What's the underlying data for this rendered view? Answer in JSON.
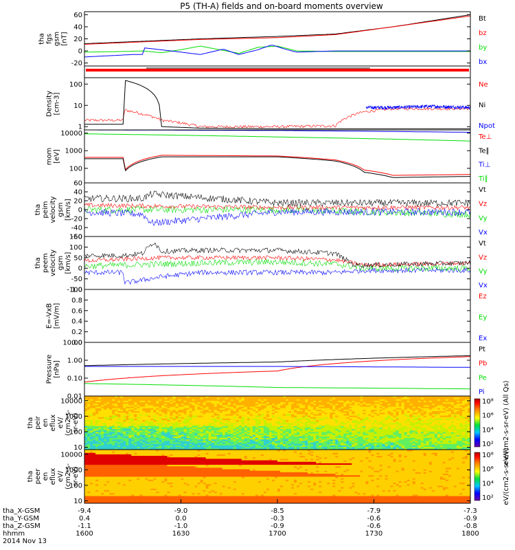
{
  "chart_data": {
    "type": "line",
    "title": "P5 (TH-A) fields and on-board moments overview",
    "colors": {
      "black": "#000000",
      "red": "#ff0000",
      "green": "#00dd00",
      "blue": "#0000ff"
    },
    "time_axis": {
      "range": [
        1600,
        1800
      ],
      "ticks": [
        "1600",
        "1630",
        "1700",
        "1730",
        "1800"
      ],
      "rows": [
        {
          "label": "tha_X-GSM",
          "values": [
            "-9.4",
            "-9.0",
            "-8.5",
            "-7.9",
            "-7.3"
          ]
        },
        {
          "label": "tha_Y-GSM",
          "values": [
            "0.4",
            "0.0",
            "-0.3",
            "-0.6",
            "-0.9"
          ]
        },
        {
          "label": "tha_Z-GSM",
          "values": [
            "-1.1",
            "-1.0",
            "-0.9",
            "-0.6",
            "-0.8"
          ]
        },
        {
          "label": "hhmm",
          "values": []
        }
      ],
      "date": "2014 Nov 13"
    },
    "panels": [
      {
        "id": "fgs",
        "ylabel": [
          "tha",
          "fgs",
          "gsm",
          "[nT]"
        ],
        "scale": "linear",
        "ylim": [
          -25,
          65
        ],
        "yticks": [
          "60",
          "40",
          "20",
          "0",
          "-20"
        ],
        "ytick_values": [
          60,
          40,
          20,
          0,
          -20
        ],
        "legend": [
          {
            "name": "Bt",
            "color": "#000000"
          },
          {
            "name": "bz",
            "color": "#ff0000"
          },
          {
            "name": "by",
            "color": "#00dd00"
          },
          {
            "name": "bx",
            "color": "#0000ff"
          }
        ],
        "series": [
          {
            "name": "Bt",
            "color": "#000000",
            "t": [
              1600,
              1630,
              1660,
              1700,
              1730,
              1760,
              1780,
              1800
            ],
            "v": [
              12,
              16,
              20,
              24,
              28,
              40,
              50,
              60
            ]
          },
          {
            "name": "bz",
            "color": "#ff0000",
            "t": [
              1600,
              1630,
              1660,
              1700,
              1730,
              1760,
              1800
            ],
            "v": [
              11,
              15,
              19,
              22,
              27,
              40,
              58
            ]
          },
          {
            "name": "by",
            "color": "#00dd00",
            "t": [
              1600,
              1620,
              1630,
              1640,
              1650,
              1660,
              1670,
              1680,
              1690,
              1700,
              1710,
              1730,
              1760,
              1800
            ],
            "v": [
              -2,
              -1,
              0,
              -3,
              2,
              8,
              2,
              -4,
              6,
              8,
              0,
              -1,
              -1,
              -1
            ]
          },
          {
            "name": "bx",
            "color": "#0000ff",
            "t": [
              1600,
              1625,
              1630,
              1631,
              1645,
              1660,
              1672,
              1680,
              1690,
              1697,
              1705,
              1710,
              1730,
              1800
            ],
            "v": [
              -10,
              -6,
              -6,
              5,
              0,
              -6,
              3,
              -6,
              2,
              10,
              2,
              -2,
              0,
              0
            ]
          }
        ]
      },
      {
        "id": "flags",
        "scale": "linear",
        "ylim": [
          0,
          1
        ],
        "legend": [],
        "series": []
      },
      {
        "id": "density",
        "ylabel": [
          "Density",
          "[cm-3]"
        ],
        "scale": "log",
        "ylim": [
          0.7,
          200
        ],
        "yticks": [
          "100",
          "10",
          "1"
        ],
        "ytick_values": [
          100,
          10,
          1
        ],
        "legend": [
          {
            "name": "Ne",
            "color": "#ff0000"
          },
          {
            "name": "Ni",
            "color": "#000000"
          },
          {
            "name": "Npot",
            "color": "#0000ff"
          }
        ],
        "series": [
          {
            "name": "Ne",
            "color": "#ff0000",
            "noise": 0.15,
            "t": [
              1600,
              1620,
              1621,
              1630,
              1640,
              1660,
              1700,
              1730,
              1745,
              1760,
              1800
            ],
            "v": [
              2,
              2,
              6,
              4,
              2,
              1,
              1,
              1.1,
              5,
              7,
              7
            ]
          },
          {
            "name": "Ni",
            "color": "#000000",
            "t": [
              1600,
              1620,
              1621,
              1640,
              1660,
              1700,
              1730,
              1760,
              1800
            ],
            "v": [
              1.3,
              1.3,
              150,
              1,
              0.85,
              0.8,
              0.8,
              0.8,
              0.8
            ]
          },
          {
            "name": "Npot",
            "color": "#0000ff",
            "noise": 0.2,
            "t": [
              1746,
              1760,
              1780,
              1800
            ],
            "v": [
              8,
              8,
              9,
              8
            ]
          }
        ]
      },
      {
        "id": "temperature",
        "ylabel": [
          "mom",
          "[eV]"
        ],
        "scale": "log",
        "ylim": [
          15,
          15000
        ],
        "yticks": [
          "10000",
          "1000",
          "100",
          "10"
        ],
        "ytick_values": [
          10000,
          1000,
          100,
          10
        ],
        "legend": [
          {
            "name": "Te⊥",
            "color": "#ff0000"
          },
          {
            "name": "Te∥",
            "color": "#000000"
          },
          {
            "name": "Ti⊥",
            "color": "#0000ff"
          },
          {
            "name": "Ti∥",
            "color": "#00dd00"
          }
        ],
        "series": [
          {
            "name": "Te⊥",
            "color": "#ff0000",
            "t": [
              1600,
              1620,
              1621,
              1640,
              1700,
              1730,
              1745,
              1760,
              1800
            ],
            "v": [
              420,
              420,
              80,
              550,
              500,
              300,
              80,
              40,
              45
            ]
          },
          {
            "name": "Te∥",
            "color": "#000000",
            "t": [
              1600,
              1620,
              1621,
              1640,
              1700,
              1730,
              1745,
              1760,
              1800
            ],
            "v": [
              350,
              350,
              70,
              450,
              450,
              260,
              60,
              30,
              35
            ]
          },
          {
            "name": "Ti⊥",
            "color": "#0000ff",
            "t": [
              1600,
              1700,
              1800
            ],
            "v": [
              15000,
              14000,
              11000
            ]
          },
          {
            "name": "Ti∥",
            "color": "#00dd00",
            "t": [
              1600,
              1700,
              1800
            ],
            "v": [
              9000,
              6000,
              3500
            ]
          }
        ]
      },
      {
        "id": "peim",
        "ylabel": [
          "tha",
          "peim",
          "velocity",
          "gsm",
          "[km/s]"
        ],
        "scale": "linear",
        "ylim": [
          -60,
          60
        ],
        "yticks": [
          "60",
          "40",
          "20",
          "0",
          "-20",
          "-40",
          "-60"
        ],
        "ytick_values": [
          60,
          40,
          20,
          0,
          -20,
          -40,
          -60
        ],
        "legend": [
          {
            "name": "Vt",
            "color": "#000000"
          },
          {
            "name": "Vz",
            "color": "#ff0000"
          },
          {
            "name": "Vy",
            "color": "#00dd00"
          },
          {
            "name": "Vx",
            "color": "#0000ff"
          }
        ],
        "series": [
          {
            "name": "Vy",
            "color": "#00dd00",
            "noise": 8,
            "t": [
              1600,
              1700,
              1800
            ],
            "v": [
              0,
              0,
              -10
            ]
          },
          {
            "name": "Vx",
            "color": "#0000ff",
            "noise": 8,
            "t": [
              1600,
              1630,
              1635,
              1700,
              1800
            ],
            "v": [
              -5,
              -10,
              -30,
              -5,
              -5
            ]
          },
          {
            "name": "Vz",
            "color": "#ff0000",
            "noise": 5,
            "t": [
              1600,
              1700,
              1800
            ],
            "v": [
              10,
              5,
              5
            ]
          },
          {
            "name": "Vt",
            "color": "#000000",
            "noise": 8,
            "t": [
              1600,
              1630,
              1635,
              1700,
              1800
            ],
            "v": [
              25,
              25,
              35,
              15,
              15
            ]
          }
        ]
      },
      {
        "id": "peem",
        "ylabel": [
          "tha",
          "peem",
          "velocity",
          "gsm",
          "[km/s]"
        ],
        "scale": "linear",
        "ylim": [
          -100,
          150
        ],
        "yticks": [
          "150",
          "100",
          "50",
          "0",
          "-50",
          "-100"
        ],
        "ytick_values": [
          150,
          100,
          50,
          0,
          -50,
          -100
        ],
        "legend": [
          {
            "name": "Vt",
            "color": "#000000"
          },
          {
            "name": "Vz",
            "color": "#ff0000"
          },
          {
            "name": "Vy",
            "color": "#00dd00"
          },
          {
            "name": "Vx",
            "color": "#0000ff"
          }
        ],
        "series": [
          {
            "name": "Vx",
            "color": "#0000ff",
            "noise": 12,
            "t": [
              1600,
              1620,
              1621,
              1640,
              1660,
              1700,
              1730,
              1745,
              1800
            ],
            "v": [
              -20,
              -20,
              -70,
              -40,
              -20,
              -20,
              -20,
              -10,
              -10
            ]
          },
          {
            "name": "Vy",
            "color": "#00dd00",
            "noise": 15,
            "t": [
              1600,
              1640,
              1660,
              1700,
              1730,
              1745,
              1800
            ],
            "v": [
              10,
              20,
              25,
              30,
              20,
              0,
              0
            ]
          },
          {
            "name": "Vz",
            "color": "#ff0000",
            "noise": 10,
            "t": [
              1600,
              1640,
              1660,
              1700,
              1730,
              1745,
              1800
            ],
            "v": [
              35,
              50,
              50,
              50,
              40,
              15,
              25
            ]
          },
          {
            "name": "Vt",
            "color": "#000000",
            "noise": 12,
            "t": [
              1600,
              1620,
              1630,
              1636,
              1640,
              1660,
              1700,
              1730,
              1740,
              1745,
              1800
            ],
            "v": [
              60,
              60,
              70,
              125,
              80,
              85,
              85,
              70,
              15,
              15,
              25
            ]
          }
        ]
      },
      {
        "id": "efield",
        "ylabel": [
          "E=-VxB",
          "[mV/m]"
        ],
        "scale": "linear",
        "ylim": [
          0,
          1
        ],
        "yticks": [
          "1.0",
          "0.8",
          "0.6",
          "0.4",
          "0.2",
          "0.0"
        ],
        "ytick_values": [
          1,
          0.8,
          0.6,
          0.4,
          0.2,
          0
        ],
        "legend": [
          {
            "name": "Ez",
            "color": "#ff0000"
          },
          {
            "name": "Ey",
            "color": "#00dd00"
          },
          {
            "name": "Ex",
            "color": "#0000ff"
          }
        ],
        "series": []
      },
      {
        "id": "pressure",
        "ylabel": [
          "Pressure",
          "[nPa]"
        ],
        "scale": "log",
        "ylim": [
          0.01,
          10
        ],
        "yticks": [
          "10.00",
          "1.00",
          "0.10",
          "0.01"
        ],
        "ytick_values": [
          10,
          1,
          0.1,
          0.01
        ],
        "legend": [
          {
            "name": "Pt",
            "color": "#000000"
          },
          {
            "name": "Pb",
            "color": "#ff0000"
          },
          {
            "name": "Pe",
            "color": "#00dd00"
          },
          {
            "name": "Pi",
            "color": "#0000ff"
          }
        ],
        "series": [
          {
            "name": "Pt",
            "color": "#000000",
            "t": [
              1600,
              1700,
              1800
            ],
            "v": [
              0.5,
              0.8,
              1.8
            ]
          },
          {
            "name": "Pb",
            "color": "#ff0000",
            "t": [
              1600,
              1700,
              1800
            ],
            "v": [
              0.06,
              0.25,
              1.6
            ]
          },
          {
            "name": "Pe",
            "color": "#00dd00",
            "t": [
              1600,
              1700,
              1800
            ],
            "v": [
              0.05,
              0.03,
              0.025
            ]
          },
          {
            "name": "Pi",
            "color": "#0000ff",
            "t": [
              1600,
              1700,
              1800
            ],
            "v": [
              0.45,
              0.45,
              0.4
            ]
          }
        ]
      },
      {
        "id": "peir",
        "type": "heatmap",
        "ylabel": [
          "tha",
          "peir",
          "en",
          "eflux",
          "eV/",
          "(cm2-s-",
          "sr-eV)"
        ],
        "scale": "log",
        "ylim": [
          7,
          20000
        ],
        "yticks": [
          "10000",
          "1000",
          "100",
          "10"
        ],
        "ytick_values": [
          10000,
          1000,
          100,
          10
        ],
        "colorbar": {
          "ticks": [
            "10⁸",
            "10⁶",
            "10⁴",
            "10²"
          ],
          "label": "eV/(cm2-s-sr-eV) (All Qs)"
        }
      },
      {
        "id": "peer",
        "type": "heatmap",
        "ylabel": [
          "tha",
          "peer",
          "en",
          "eflux",
          "eV/",
          "(cm2-s-",
          "sr-eV)"
        ],
        "scale": "log",
        "ylim": [
          7,
          20000
        ],
        "yticks": [
          "10000",
          "1000",
          "100",
          "10"
        ],
        "ytick_values": [
          10000,
          1000,
          100,
          10
        ],
        "colorbar": {
          "ticks": [
            "10⁸",
            "10⁶",
            "10⁴",
            "10²"
          ],
          "label": "eV/(cm2-s-sr-eV)"
        }
      }
    ]
  }
}
